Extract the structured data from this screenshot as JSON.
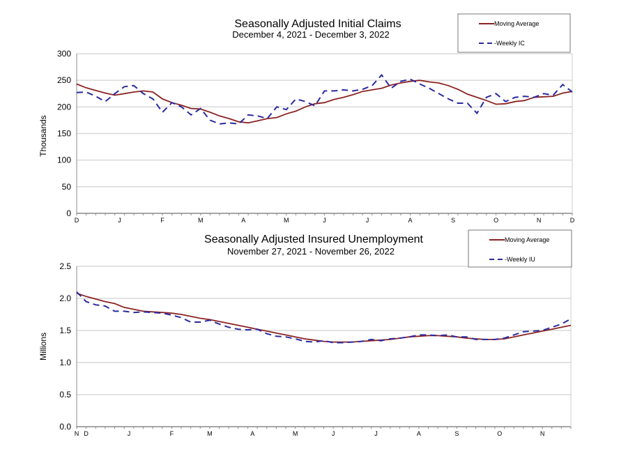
{
  "chart_data": [
    {
      "type": "line",
      "title": "Seasonally Adjusted Initial Claims",
      "subtitle": "December 4, 2021 - December 3, 2022",
      "xlabel": "",
      "ylabel": "Thousands",
      "ylim": [
        0,
        300
      ],
      "yticks": [
        "0",
        "50",
        "100",
        "150",
        "200",
        "250",
        "300"
      ],
      "xtick_labels": [
        {
          "label": "D",
          "week": 0
        },
        {
          "label": "J",
          "week": 4.5
        },
        {
          "label": "F",
          "week": 9
        },
        {
          "label": "M",
          "week": 13
        },
        {
          "label": "A",
          "week": 17.5
        },
        {
          "label": "M",
          "week": 22
        },
        {
          "label": "J",
          "week": 26
        },
        {
          "label": "J",
          "week": 30.5
        },
        {
          "label": "A",
          "week": 35
        },
        {
          "label": "S",
          "week": 39.5
        },
        {
          "label": "O",
          "week": 44
        },
        {
          "label": "N",
          "week": 48.5
        },
        {
          "label": "D",
          "week": 52
        }
      ],
      "grid": true,
      "legend": "top-right",
      "series": [
        {
          "name": "Moving Average",
          "color": "#8b2323",
          "style": "solid",
          "values": [
            243,
            236,
            231,
            226,
            222,
            225,
            228,
            230,
            228,
            215,
            208,
            203,
            197,
            196,
            190,
            183,
            178,
            172,
            170,
            174,
            178,
            180,
            187,
            192,
            200,
            206,
            208,
            214,
            218,
            223,
            229,
            232,
            235,
            241,
            245,
            248,
            250,
            247,
            245,
            240,
            233,
            224,
            218,
            212,
            205,
            206,
            210,
            212,
            218,
            219,
            220,
            226,
            229
          ]
        },
        {
          "name": "Weekly IC",
          "color": "#2a2aa0",
          "style": "dashed",
          "values": [
            227,
            228,
            220,
            210,
            225,
            238,
            240,
            225,
            215,
            190,
            208,
            200,
            185,
            197,
            175,
            168,
            170,
            168,
            185,
            183,
            178,
            200,
            195,
            215,
            210,
            202,
            230,
            230,
            232,
            230,
            233,
            240,
            260,
            235,
            248,
            252,
            243,
            235,
            225,
            215,
            207,
            207,
            188,
            218,
            225,
            210,
            218,
            220,
            218,
            225,
            222,
            242,
            228
          ]
        }
      ]
    },
    {
      "type": "line",
      "title": "Seasonally Adjusted Insured Unemployment",
      "subtitle": "November 27, 2021 - November 26, 2022",
      "xlabel": "",
      "ylabel": "Millions",
      "ylim": [
        0,
        2.5
      ],
      "yticks": [
        "0.0",
        "0.5",
        "1.0",
        "1.5",
        "2.0",
        "2.5"
      ],
      "xtick_labels": [
        {
          "label": "N",
          "week": 0
        },
        {
          "label": "D",
          "week": 1
        },
        {
          "label": "J",
          "week": 5.5
        },
        {
          "label": "F",
          "week": 10
        },
        {
          "label": "M",
          "week": 14
        },
        {
          "label": "A",
          "week": 18.5
        },
        {
          "label": "M",
          "week": 23
        },
        {
          "label": "J",
          "week": 27
        },
        {
          "label": "J",
          "week": 31.5
        },
        {
          "label": "A",
          "week": 36
        },
        {
          "label": "S",
          "week": 40
        },
        {
          "label": "O",
          "week": 44.5
        },
        {
          "label": "N",
          "week": 49
        }
      ],
      "grid": true,
      "legend": "top-right",
      "series": [
        {
          "name": "Moving Average",
          "color": "#8b2323",
          "style": "solid",
          "values": [
            2.08,
            2.03,
            1.99,
            1.95,
            1.92,
            1.86,
            1.83,
            1.8,
            1.79,
            1.78,
            1.77,
            1.75,
            1.72,
            1.69,
            1.67,
            1.64,
            1.61,
            1.58,
            1.55,
            1.52,
            1.49,
            1.46,
            1.43,
            1.4,
            1.37,
            1.35,
            1.33,
            1.32,
            1.32,
            1.32,
            1.33,
            1.34,
            1.35,
            1.36,
            1.38,
            1.4,
            1.41,
            1.42,
            1.42,
            1.41,
            1.4,
            1.38,
            1.37,
            1.36,
            1.36,
            1.37,
            1.4,
            1.43,
            1.46,
            1.49,
            1.52,
            1.55,
            1.58
          ]
        },
        {
          "name": "Weekly IU",
          "color": "#2a2aa0",
          "style": "dashed",
          "values": [
            2.1,
            1.95,
            1.9,
            1.88,
            1.8,
            1.8,
            1.78,
            1.79,
            1.78,
            1.77,
            1.74,
            1.7,
            1.63,
            1.63,
            1.66,
            1.6,
            1.55,
            1.52,
            1.51,
            1.52,
            1.45,
            1.41,
            1.4,
            1.37,
            1.33,
            1.32,
            1.34,
            1.31,
            1.31,
            1.32,
            1.33,
            1.36,
            1.34,
            1.37,
            1.38,
            1.4,
            1.43,
            1.43,
            1.42,
            1.43,
            1.4,
            1.4,
            1.36,
            1.36,
            1.36,
            1.38,
            1.43,
            1.48,
            1.49,
            1.5,
            1.55,
            1.6,
            1.68
          ]
        }
      ]
    }
  ]
}
